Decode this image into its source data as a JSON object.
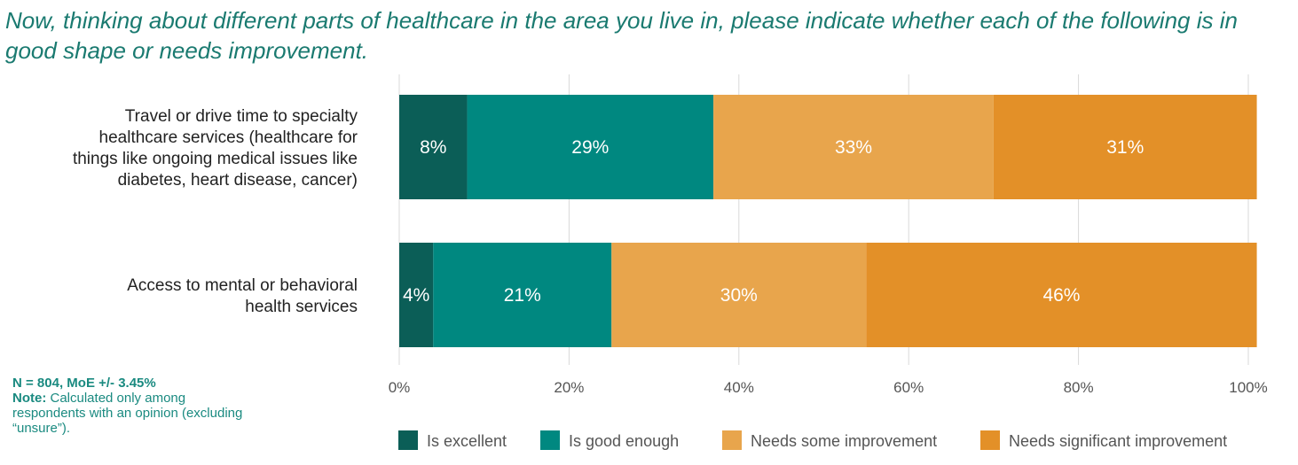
{
  "title": "Now, thinking about different parts of healthcare in the area you live in, please indicate whether each of the following is in good shape or needs improvement.",
  "note": {
    "sample": "N = 804, MoE +/- 3.45%",
    "label": "Note:",
    "text": "Calculated only among respondents with an opinion (excluding “unsure”)."
  },
  "chart_data": {
    "type": "bar",
    "orientation": "horizontal",
    "stacked": true,
    "categories": [
      [
        "Travel or drive time to specialty",
        "healthcare services (healthcare for",
        "things like ongoing medical issues like",
        "diabetes, heart disease, cancer)"
      ],
      [
        "Access to mental or behavioral",
        "health services"
      ]
    ],
    "series": [
      {
        "name": "Is excellent",
        "values": [
          8,
          4
        ],
        "labels": [
          "8%",
          "4%"
        ],
        "color": "#0b5e57"
      },
      {
        "name": "Is good enough",
        "values": [
          29,
          21
        ],
        "labels": [
          "29%",
          "21%"
        ],
        "color": "#008880"
      },
      {
        "name": "Needs some improvement",
        "values": [
          33,
          30
        ],
        "labels": [
          "33%",
          "30%"
        ],
        "color": "#e8a54c"
      },
      {
        "name": "Needs significant improvement",
        "values": [
          31,
          46
        ],
        "labels": [
          "31%",
          "46%"
        ],
        "color": "#e39028"
      }
    ],
    "xlim": [
      0,
      100
    ],
    "xticks": [
      0,
      20,
      40,
      60,
      80,
      100
    ],
    "xtick_labels": [
      "0%",
      "20%",
      "40%",
      "60%",
      "80%",
      "100%"
    ],
    "grid": true,
    "legend_position": "bottom"
  }
}
